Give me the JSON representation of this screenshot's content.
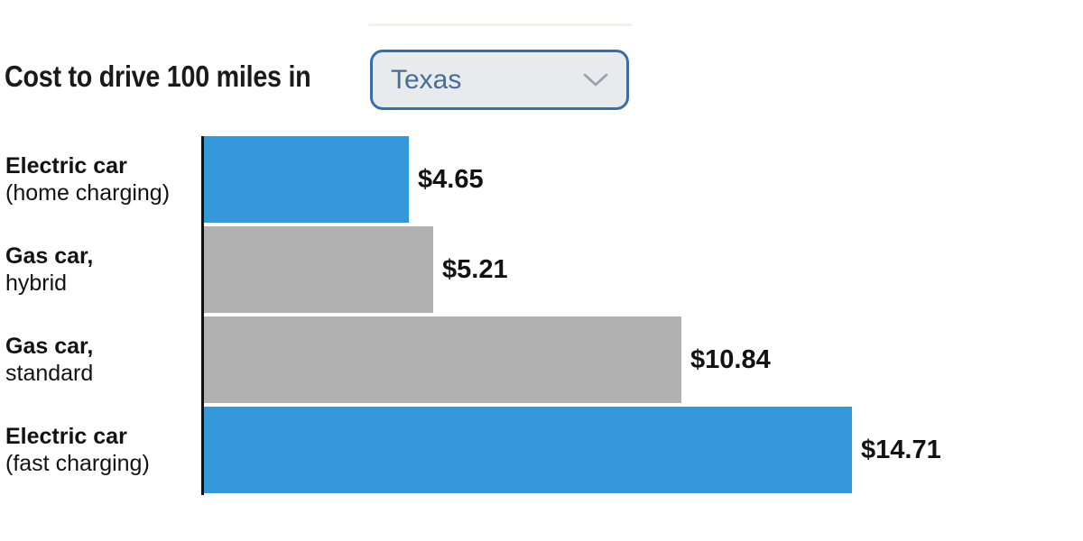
{
  "page": {
    "background": "#ffffff"
  },
  "header": {
    "title": "Cost to drive 100 miles in",
    "state_selector": {
      "selected_value": "Texas",
      "icon": "chevron-down-icon",
      "border_color": "#3a6da6",
      "background": "#e8ebee",
      "text_color": "#486c94",
      "chevron_color": "#9aa0a6"
    }
  },
  "chart_data": {
    "type": "bar",
    "orientation": "horizontal",
    "title": "Cost to drive 100 miles in Texas",
    "xlabel": "",
    "ylabel": "",
    "xlim": [
      0,
      15
    ],
    "grid": false,
    "legend": false,
    "axis_line_color": "#111111",
    "categories": [
      "Electric car (home charging)",
      "Gas car, hybrid",
      "Gas car, standard",
      "Electric car (fast charging)"
    ],
    "values": [
      4.65,
      5.21,
      10.84,
      14.71
    ],
    "series_colors": {
      "electric": "#3598db",
      "gas": "#b1b1b1"
    },
    "rows": [
      {
        "label_line1": "Electric car",
        "label_line2": "(home charging)",
        "value": 4.65,
        "value_label": "$4.65",
        "series": "electric"
      },
      {
        "label_line1": "Gas car,",
        "label_line2": "hybrid",
        "value": 5.21,
        "value_label": "$5.21",
        "series": "gas"
      },
      {
        "label_line1": "Gas car,",
        "label_line2": "standard",
        "value": 10.84,
        "value_label": "$10.84",
        "series": "gas"
      },
      {
        "label_line1": "Electric car",
        "label_line2": "(fast charging)",
        "value": 14.71,
        "value_label": "$14.71",
        "series": "electric"
      }
    ]
  }
}
